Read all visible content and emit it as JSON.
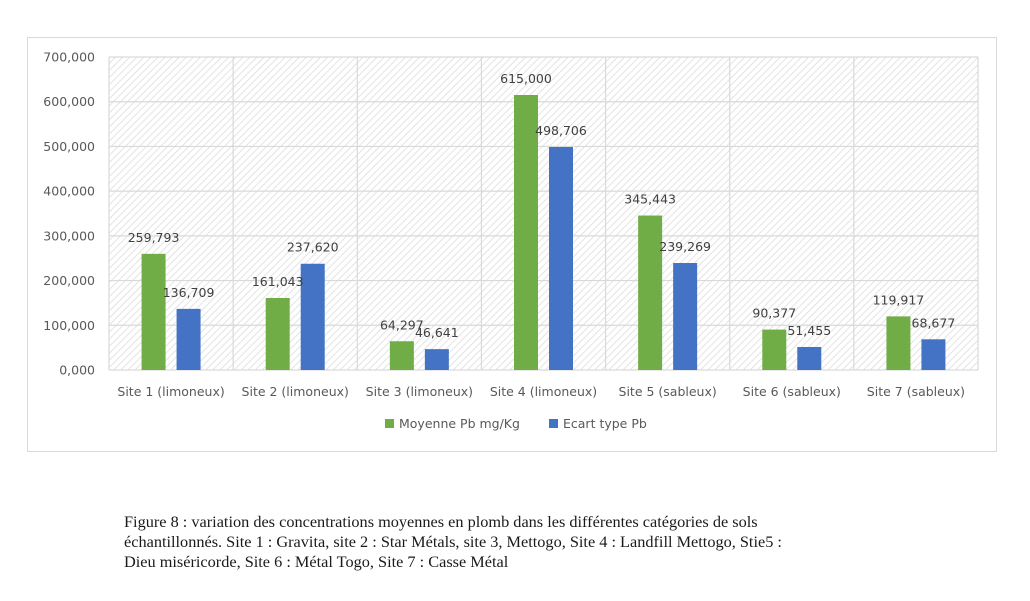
{
  "chart_data": {
    "type": "bar",
    "title": "",
    "xlabel": "",
    "ylabel": "",
    "ylim": [
      0,
      700000
    ],
    "yticks": [
      0,
      100000,
      200000,
      300000,
      400000,
      500000,
      600000,
      700000
    ],
    "ytick_labels": [
      "0,000",
      "100,000",
      "200,000",
      "300,000",
      "400,000",
      "500,000",
      "600,000",
      "700,000"
    ],
    "grid": true,
    "legend_position": "bottom",
    "categories": [
      "Site 1 (limoneux)",
      "Site 2 (limoneux)",
      "Site 3 (limoneux)",
      "Site 4 (limoneux)",
      "Site 5 (sableux)",
      "Site 6 (sableux)",
      "Site 7 (sableux)"
    ],
    "series": [
      {
        "name": "Moyenne Pb mg/Kg",
        "color": "#70AD47",
        "values": [
          259793,
          161043,
          64297,
          615000,
          345443,
          90377,
          119917
        ],
        "labels": [
          "259,793",
          "161,043",
          "64,297",
          "615,000",
          "345,443",
          "90,377",
          "119,917"
        ]
      },
      {
        "name": "Ecart type Pb",
        "color": "#4472C4",
        "values": [
          136709,
          237620,
          46641,
          498706,
          239269,
          51455,
          68677
        ],
        "labels": [
          "136,709",
          "237,620",
          "46,641",
          "498,706",
          "239,269",
          "51,455",
          "68,677"
        ]
      }
    ]
  },
  "caption": {
    "lines": [
      "Figure 8 : variation des concentrations moyennes en plomb dans les différentes catégories de sols",
      "échantillonnés. Site 1 : Gravita, site 2 : Star Métals, site 3, Mettogo, Site 4 : Landfill Mettogo, Stie5 :",
      "Dieu miséricorde, Site 6 : Métal Togo, Site 7 : Casse Métal"
    ]
  }
}
